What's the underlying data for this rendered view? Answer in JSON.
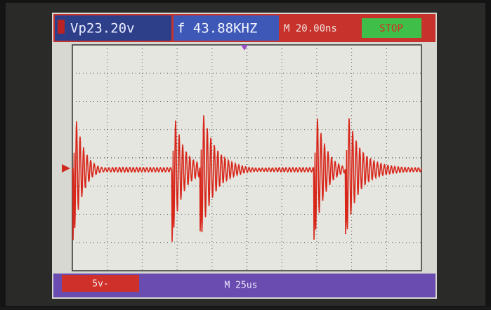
{
  "header": {
    "peak_voltage": "Vp23.20v",
    "frequency": "f 43.88KHZ",
    "time_base": "M 20.00ns",
    "run_state": "STOP"
  },
  "footer": {
    "channel_scale": "5v-",
    "time_scale": "M 25us"
  }
}
